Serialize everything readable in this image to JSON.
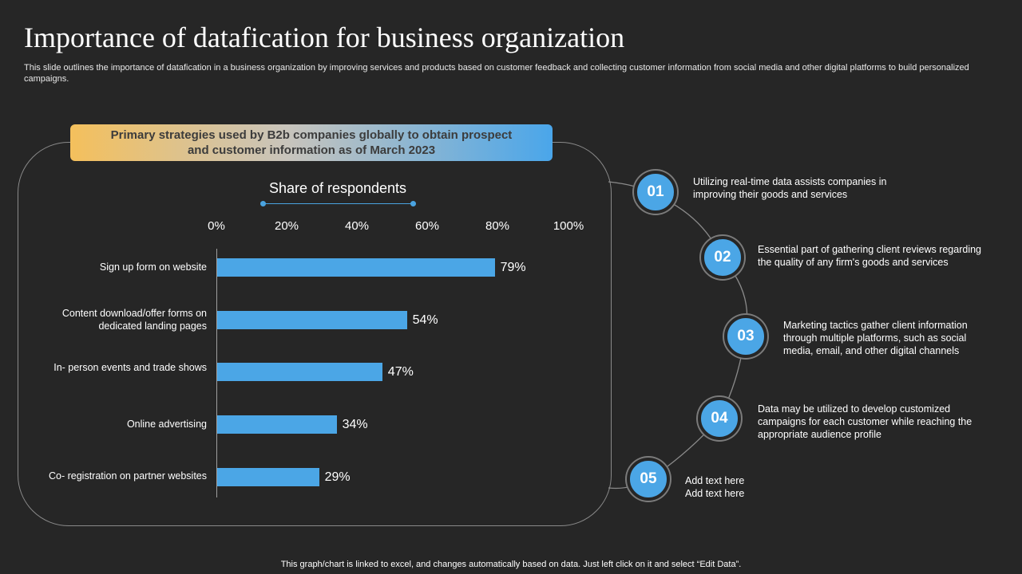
{
  "title": "Importance of datafication for business organization",
  "subtitle": "This slide outlines the importance of datafication in a business organization by improving services and products based on customer feedback and collecting customer information from social media and other digital platforms to build personalized campaigns.",
  "banner": "Primary strategies used by B2b companies globally to obtain prospect and customer information as of March 2023",
  "chart_data": {
    "type": "bar",
    "orientation": "horizontal",
    "title": "Share of respondents",
    "x_ticks": [
      "0%",
      "20%",
      "40%",
      "60%",
      "80%",
      "100%"
    ],
    "xlim": [
      0,
      100
    ],
    "categories": [
      "Sign up form on website",
      "Content download/offer forms on dedicated landing pages",
      "In- person events and trade shows",
      "Online advertising",
      "Co- registration on partner websites"
    ],
    "values": [
      79,
      54,
      47,
      34,
      29
    ],
    "value_labels": [
      "79%",
      "54%",
      "47%",
      "34%",
      "29%"
    ],
    "bar_color": "#4ba6e6"
  },
  "steps": [
    {
      "number": "01",
      "text": "Utilizing real-time data assists companies in improving their goods and services"
    },
    {
      "number": "02",
      "text": "Essential part of gathering client reviews regarding the quality of any firm's goods and services"
    },
    {
      "number": "03",
      "text": "Marketing tactics gather client information through multiple platforms, such as social media, email, and other digital channels"
    },
    {
      "number": "04",
      "text": "Data may be utilized to develop customized campaigns for each customer while reaching the appropriate audience profile"
    },
    {
      "number": "05",
      "text": "Add text here Add text here"
    }
  ],
  "footer": "This graph/chart is linked to excel, and changes automatically based on data. Just left click on it and select “Edit Data”."
}
